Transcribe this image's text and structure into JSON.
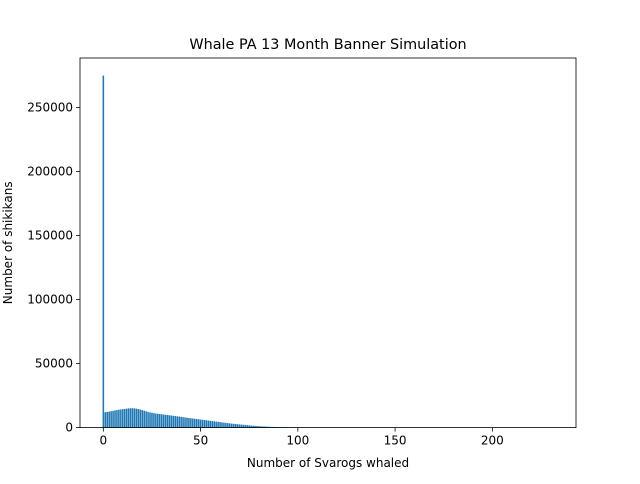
{
  "chart_data": {
    "type": "bar",
    "title": "Whale PA 13 Month Banner Simulation",
    "xlabel": "Number of Svarogs whaled",
    "ylabel": "Number of shikikans",
    "xlim": [
      -12,
      243
    ],
    "ylim": [
      0,
      288750
    ],
    "xticks": [
      0,
      50,
      100,
      150,
      200
    ],
    "yticks": [
      0,
      50000,
      100000,
      150000,
      200000,
      250000
    ],
    "grid": false,
    "legend": "none",
    "bar_color": "#1f77b4",
    "bar_width": 0.8,
    "x": [
      0,
      1,
      2,
      3,
      4,
      5,
      6,
      7,
      8,
      9,
      10,
      11,
      12,
      13,
      14,
      15,
      16,
      17,
      18,
      19,
      20,
      21,
      22,
      23,
      24,
      25,
      26,
      27,
      28,
      29,
      30,
      31,
      32,
      33,
      34,
      35,
      36,
      37,
      38,
      39,
      40,
      41,
      42,
      43,
      44,
      45,
      46,
      47,
      48,
      49,
      50,
      51,
      52,
      53,
      54,
      55,
      56,
      57,
      58,
      59,
      60,
      61,
      62,
      63,
      64,
      65,
      66,
      67,
      68,
      69,
      70,
      71,
      72,
      73,
      74,
      75,
      76,
      77,
      78,
      79,
      80,
      81,
      82,
      83,
      84,
      85,
      86,
      87,
      88,
      89,
      90,
      91,
      92,
      93,
      94,
      95,
      96,
      97,
      98,
      99,
      100,
      101,
      102,
      103,
      104,
      105,
      106,
      107,
      108,
      109,
      110,
      111,
      112,
      113,
      114,
      115,
      116,
      117,
      118,
      119,
      120
    ],
    "values": [
      275000,
      12000,
      12200,
      12500,
      12800,
      13100,
      13400,
      13700,
      14000,
      14200,
      14400,
      14600,
      14800,
      15000,
      15100,
      15100,
      15000,
      14800,
      14500,
      14100,
      13700,
      13200,
      12700,
      12300,
      11900,
      11600,
      11300,
      11000,
      10800,
      10600,
      10400,
      10200,
      10000,
      9800,
      9600,
      9400,
      9200,
      9000,
      8800,
      8600,
      8400,
      8100,
      7900,
      7700,
      7500,
      7300,
      7100,
      6900,
      6700,
      6500,
      6300,
      6100,
      5900,
      5700,
      5500,
      5300,
      5100,
      4900,
      4700,
      4500,
      4300,
      4100,
      3900,
      3700,
      3500,
      3300,
      3100,
      2950,
      2800,
      2650,
      2500,
      2350,
      2200,
      2050,
      1900,
      1750,
      1600,
      1480,
      1360,
      1240,
      1120,
      1020,
      930,
      840,
      760,
      690,
      620,
      560,
      500,
      450,
      400,
      360,
      320,
      285,
      255,
      225,
      200,
      178,
      158,
      140,
      124,
      110,
      97,
      86,
      76,
      67,
      59,
      52,
      46,
      40,
      35,
      31,
      27,
      23,
      20,
      17,
      14,
      12,
      10,
      8,
      6
    ]
  }
}
